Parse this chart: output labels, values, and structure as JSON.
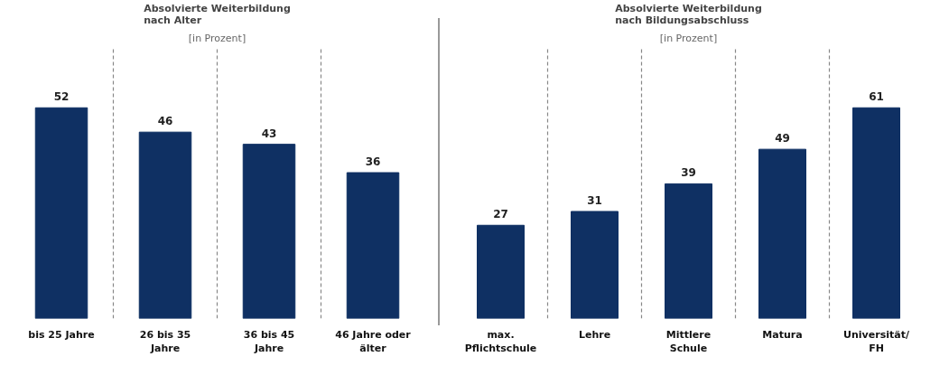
{
  "chart_data": [
    {
      "type": "bar",
      "title": "Absolvierte Weiterbildung\nnach Alter",
      "subtitle": "[in Prozent]",
      "categories": [
        "bis 25 Jahre",
        "26 bis 35 Jahre",
        "36 bis 45 Jahre",
        "46 Jahre oder älter"
      ],
      "values": [
        52,
        46,
        43,
        36
      ],
      "color": "#0f3063",
      "data_labels": true,
      "grid": "x",
      "tick_labels": "x"
    },
    {
      "type": "bar",
      "title": "Absolvierte Weiterbildung\nnach Bildungsabschluss",
      "subtitle": "[in Prozent]",
      "categories": [
        "max. Pflichtschule",
        "Lehre",
        "Mittlere Schule",
        "Matura",
        "Universität/FH"
      ],
      "values": [
        27,
        31,
        39,
        49,
        61
      ],
      "color": "#0f3063",
      "data_labels": true,
      "grid": "x",
      "tick_labels": "x"
    }
  ]
}
